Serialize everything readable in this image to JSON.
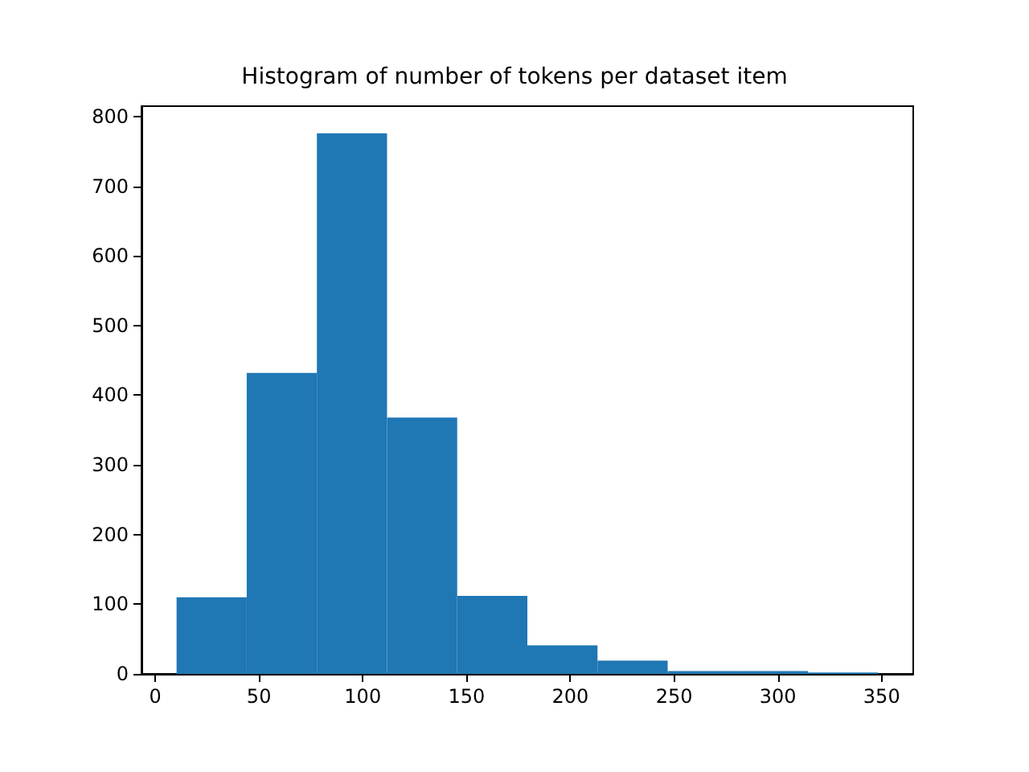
{
  "chart_data": {
    "type": "histogram",
    "title": "Histogram of number of tokens per dataset item",
    "bins": [
      10.3,
      44.1,
      77.9,
      111.7,
      145.5,
      179.3,
      213.1,
      246.9,
      280.7,
      314.5,
      348.3
    ],
    "values": [
      110,
      432,
      776,
      368,
      112,
      41,
      19,
      4,
      4,
      2
    ],
    "color": "#1f77b4",
    "xlim": [
      -6.6,
      365.2
    ],
    "xticks": [
      0,
      50,
      100,
      150,
      200,
      250,
      300,
      350
    ],
    "ylim": [
      0,
      815
    ],
    "yticks": [
      0,
      100,
      200,
      300,
      400,
      500,
      600,
      700,
      800
    ],
    "grid": false
  }
}
